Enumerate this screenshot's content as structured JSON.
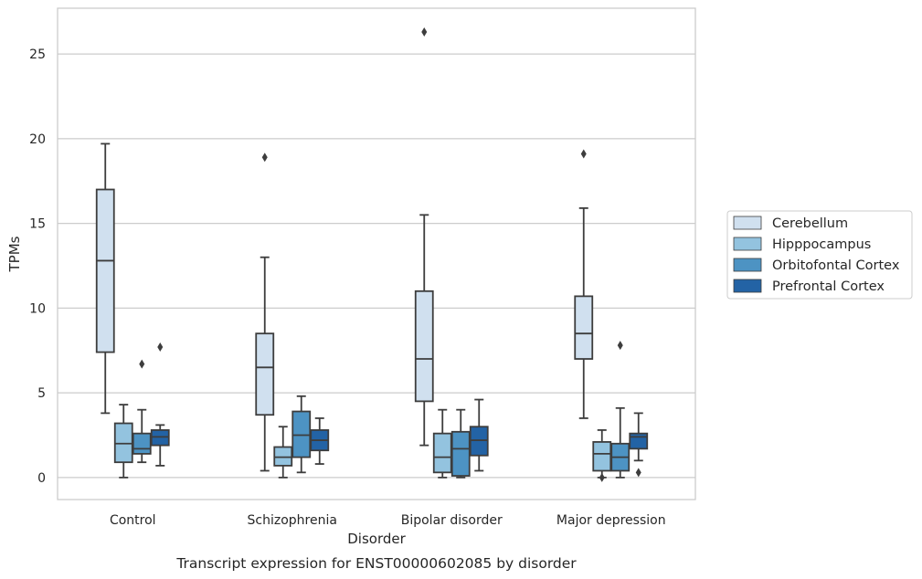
{
  "chart_data": {
    "type": "box",
    "xlabel": "Disorder",
    "ylabel": "TPMs",
    "caption": "Transcript expression for ENST00000602085 by disorder",
    "ylim": [
      -1.3,
      27.7
    ],
    "yticks": [
      0,
      5,
      10,
      15,
      20,
      25
    ],
    "grid": true,
    "legend_position": "right",
    "categories": [
      "Control",
      "Schizophrenia",
      "Bipolar disorder",
      "Major depression"
    ],
    "series": [
      {
        "name": "Cerebellum",
        "color": "#d0e0ef",
        "boxes": [
          {
            "whislo": 3.8,
            "q1": 7.4,
            "med": 12.8,
            "q3": 17.0,
            "whishi": 19.7,
            "fliers": []
          },
          {
            "whislo": 0.4,
            "q1": 3.7,
            "med": 6.5,
            "q3": 8.5,
            "whishi": 13.0,
            "fliers": [
              18.9
            ]
          },
          {
            "whislo": 1.9,
            "q1": 4.5,
            "med": 7.0,
            "q3": 11.0,
            "whishi": 15.5,
            "fliers": [
              26.3
            ]
          },
          {
            "whislo": 3.5,
            "q1": 7.0,
            "med": 8.5,
            "q3": 10.7,
            "whishi": 15.9,
            "fliers": [
              19.1
            ]
          }
        ]
      },
      {
        "name": "Hipppocampus",
        "color": "#93c3df",
        "boxes": [
          {
            "whislo": 0.0,
            "q1": 0.9,
            "med": 2.0,
            "q3": 3.2,
            "whishi": 4.3,
            "fliers": []
          },
          {
            "whislo": 0.0,
            "q1": 0.7,
            "med": 1.2,
            "q3": 1.8,
            "whishi": 3.0,
            "fliers": []
          },
          {
            "whislo": 0.0,
            "q1": 0.3,
            "med": 1.2,
            "q3": 2.6,
            "whishi": 4.0,
            "fliers": []
          },
          {
            "whislo": 0.0,
            "q1": 0.4,
            "med": 1.4,
            "q3": 2.1,
            "whishi": 2.8,
            "fliers": [
              0.0
            ]
          }
        ]
      },
      {
        "name": "Orbitofontal Cortex",
        "color": "#4d93c3",
        "boxes": [
          {
            "whislo": 0.9,
            "q1": 1.4,
            "med": 1.7,
            "q3": 2.6,
            "whishi": 4.0,
            "fliers": [
              6.7
            ]
          },
          {
            "whislo": 0.3,
            "q1": 1.2,
            "med": 2.5,
            "q3": 3.9,
            "whishi": 4.8,
            "fliers": []
          },
          {
            "whislo": 0.0,
            "q1": 0.1,
            "med": 1.7,
            "q3": 2.7,
            "whishi": 4.0,
            "fliers": []
          },
          {
            "whislo": 0.0,
            "q1": 0.4,
            "med": 1.2,
            "q3": 2.0,
            "whishi": 4.1,
            "fliers": [
              7.8
            ]
          }
        ]
      },
      {
        "name": "Prefrontal Cortex",
        "color": "#2363a5",
        "boxes": [
          {
            "whislo": 0.7,
            "q1": 1.9,
            "med": 2.4,
            "q3": 2.8,
            "whishi": 3.1,
            "fliers": [
              7.7
            ]
          },
          {
            "whislo": 0.8,
            "q1": 1.6,
            "med": 2.2,
            "q3": 2.8,
            "whishi": 3.5,
            "fliers": []
          },
          {
            "whislo": 0.4,
            "q1": 1.3,
            "med": 2.2,
            "q3": 3.0,
            "whishi": 4.6,
            "fliers": []
          },
          {
            "whislo": 1.0,
            "q1": 1.7,
            "med": 2.4,
            "q3": 2.6,
            "whishi": 3.8,
            "fliers": [
              0.3
            ]
          }
        ]
      }
    ]
  }
}
